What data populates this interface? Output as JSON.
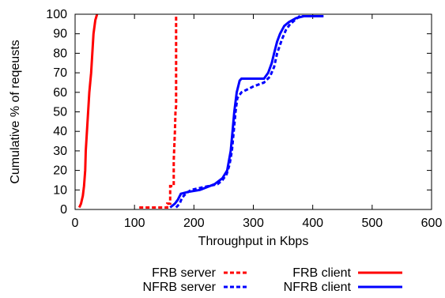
{
  "chart_data": {
    "type": "line",
    "title": "",
    "xlabel": "Throughput in Kbps",
    "ylabel": "Cumulative % of reqeusts",
    "xlim": [
      0,
      600
    ],
    "ylim": [
      0,
      100
    ],
    "xticks": [
      0,
      100,
      200,
      300,
      400,
      500,
      600
    ],
    "yticks": [
      0,
      10,
      20,
      30,
      40,
      50,
      60,
      70,
      80,
      90,
      100
    ],
    "grid": false,
    "legend_position": "bottom",
    "series": [
      {
        "name": "FRB server",
        "color": "#ff0000",
        "dashed": true,
        "points": [
          [
            108,
            1
          ],
          [
            155,
            1
          ],
          [
            155,
            3
          ],
          [
            160,
            3
          ],
          [
            160,
            12
          ],
          [
            166,
            12
          ],
          [
            166,
            25
          ],
          [
            168,
            40
          ],
          [
            169,
            50
          ],
          [
            170,
            53
          ],
          [
            170,
            75
          ],
          [
            170,
            100
          ]
        ]
      },
      {
        "name": "FRB client",
        "color": "#ff0000",
        "dashed": false,
        "points": [
          [
            7,
            1
          ],
          [
            10,
            3
          ],
          [
            13,
            7
          ],
          [
            15,
            12
          ],
          [
            17,
            20
          ],
          [
            18,
            30
          ],
          [
            20,
            40
          ],
          [
            22,
            50
          ],
          [
            24,
            60
          ],
          [
            27,
            70
          ],
          [
            29,
            80
          ],
          [
            31,
            90
          ],
          [
            34,
            97
          ],
          [
            36,
            99
          ],
          [
            37,
            100
          ]
        ]
      },
      {
        "name": "NFRB server",
        "color": "#0000ff",
        "dashed": true,
        "points": [
          [
            170,
            1
          ],
          [
            176,
            3
          ],
          [
            180,
            6
          ],
          [
            186,
            8
          ],
          [
            195,
            10
          ],
          [
            210,
            11
          ],
          [
            240,
            13
          ],
          [
            248,
            15
          ],
          [
            255,
            18
          ],
          [
            260,
            23
          ],
          [
            264,
            30
          ],
          [
            267,
            40
          ],
          [
            270,
            50
          ],
          [
            273,
            57
          ],
          [
            280,
            60
          ],
          [
            300,
            63
          ],
          [
            318,
            65
          ],
          [
            328,
            68
          ],
          [
            335,
            73
          ],
          [
            340,
            80
          ],
          [
            348,
            87
          ],
          [
            355,
            92
          ],
          [
            362,
            95
          ],
          [
            370,
            97
          ],
          [
            378,
            99
          ],
          [
            418,
            99
          ]
        ]
      },
      {
        "name": "NFRB client",
        "color": "#0000ff",
        "dashed": false,
        "points": [
          [
            160,
            1
          ],
          [
            168,
            3
          ],
          [
            173,
            5
          ],
          [
            178,
            8
          ],
          [
            190,
            9
          ],
          [
            210,
            10
          ],
          [
            235,
            13
          ],
          [
            248,
            16
          ],
          [
            256,
            20
          ],
          [
            262,
            30
          ],
          [
            265,
            40
          ],
          [
            268,
            50
          ],
          [
            272,
            60
          ],
          [
            277,
            66
          ],
          [
            280,
            67
          ],
          [
            318,
            67
          ],
          [
            325,
            70
          ],
          [
            331,
            75
          ],
          [
            335,
            80
          ],
          [
            340,
            86
          ],
          [
            345,
            90
          ],
          [
            352,
            94
          ],
          [
            360,
            96
          ],
          [
            372,
            98
          ],
          [
            385,
            99
          ],
          [
            418,
            99
          ]
        ]
      }
    ]
  }
}
